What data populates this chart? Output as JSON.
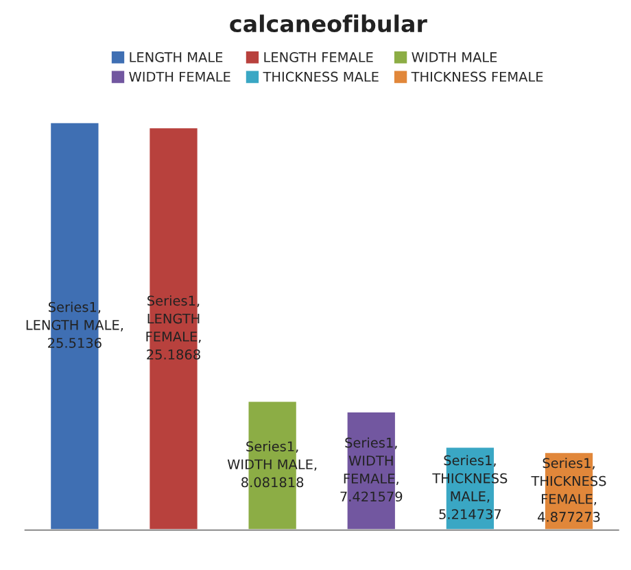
{
  "chart_data": {
    "type": "bar",
    "title": "calcaneofibular",
    "categories": [
      null,
      null,
      null,
      null,
      null,
      null
    ],
    "series": [
      {
        "name": "LENGTH MALE",
        "color": "#3f6fb3",
        "values": [
          25.5136,
          null,
          null,
          null,
          null,
          null
        ],
        "value_labels": [
          "Series1,\nLENGTH MALE,\n25.5136",
          null,
          null,
          null,
          null,
          null
        ]
      },
      {
        "name": "LENGTH FEMALE",
        "color": "#b8413d",
        "values": [
          null,
          25.1868,
          null,
          null,
          null,
          null
        ],
        "value_labels": [
          null,
          "Series1,\nLENGTH\nFEMALE,\n25.1868",
          null,
          null,
          null,
          null
        ]
      },
      {
        "name": "WIDTH MALE",
        "color": "#8cad45",
        "values": [
          null,
          null,
          8.081818,
          null,
          null,
          null
        ],
        "value_labels": [
          null,
          null,
          "Series1,\nWIDTH MALE,\n8.081818",
          null,
          null,
          null
        ]
      },
      {
        "name": "WIDTH FEMALE",
        "color": "#7257a0",
        "values": [
          null,
          null,
          null,
          7.421579,
          null,
          null
        ],
        "value_labels": [
          null,
          null,
          null,
          "Series1,\nWIDTH\nFEMALE,\n7.421579",
          null,
          null
        ]
      },
      {
        "name": "THICKNESS MALE",
        "color": "#3aa7c4",
        "values": [
          null,
          null,
          null,
          null,
          5.214737,
          null
        ],
        "value_labels": [
          null,
          null,
          null,
          null,
          "Series1,\nTHICKNESS\nMALE,\n5.214737",
          null
        ]
      },
      {
        "name": "THICKNESS FEMALE",
        "color": "#e1873a",
        "values": [
          null,
          null,
          null,
          null,
          null,
          4.877273
        ],
        "value_labels": [
          null,
          null,
          null,
          null,
          null,
          "Series1,\nTHICKNESS\nFEMALE,\n4.877273"
        ]
      }
    ],
    "stacked": true,
    "legend": "top",
    "grid": false
  }
}
